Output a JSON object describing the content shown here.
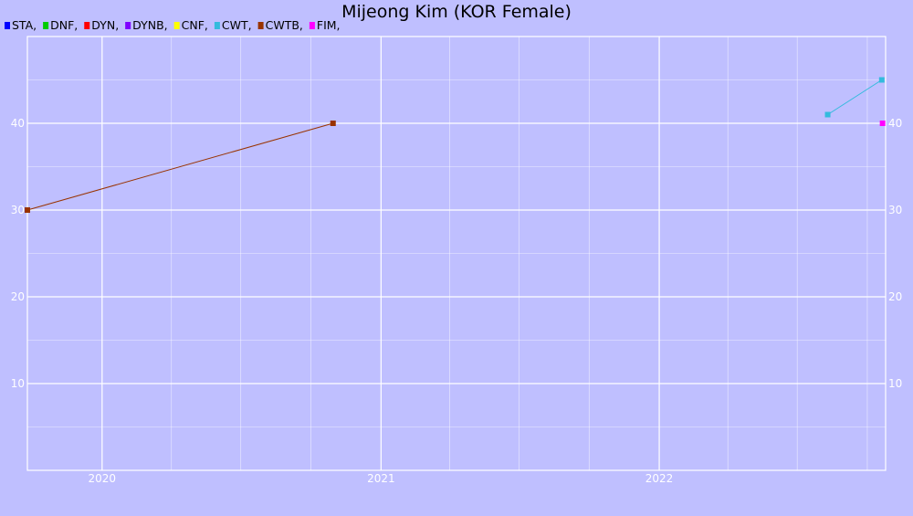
{
  "chart_data": {
    "type": "line",
    "title": "Mijeong Kim (KOR Female)",
    "legend": [
      {
        "label": "STA,",
        "color": "#0000ff"
      },
      {
        "label": "DNF,",
        "color": "#00cc00"
      },
      {
        "label": "DYN,",
        "color": "#ff0000"
      },
      {
        "label": "DYNB,",
        "color": "#7f00ff"
      },
      {
        "label": "CNF,",
        "color": "#ffff00"
      },
      {
        "label": "CWT,",
        "color": "#33bbdd"
      },
      {
        "label": "CWTB,",
        "color": "#993300"
      },
      {
        "label": "FIM,",
        "color": "#ff00ff"
      }
    ],
    "legend_placement": "top-left",
    "x_axis": {
      "type": "date",
      "range": [
        "2019-09-25",
        "2022-10-25"
      ],
      "tick_labels": [
        "2020",
        "2021",
        "2022"
      ],
      "tick_dates": [
        "2020-01-01",
        "2021-01-01",
        "2022-01-01"
      ],
      "minor_grid_dates": [
        "2020-04-01",
        "2020-07-01",
        "2020-10-01",
        "2021-04-01",
        "2021-07-01",
        "2021-10-01",
        "2022-04-01",
        "2022-07-01",
        "2022-10-01"
      ]
    },
    "y_axis": {
      "range": [
        0,
        50
      ],
      "tick_labels": [
        "10",
        "20",
        "30",
        "40"
      ],
      "ticks": [
        10,
        20,
        30,
        40
      ],
      "minor_ticks": [
        5,
        15,
        25,
        35,
        45
      ]
    },
    "grid": true,
    "series": [
      {
        "name": "CWTB",
        "color": "#993300",
        "points": [
          {
            "x": "2019-09-25",
            "y": 30
          },
          {
            "x": "2020-10-30",
            "y": 40
          }
        ]
      },
      {
        "name": "CWT",
        "color": "#33bbdd",
        "points": [
          {
            "x": "2022-08-10",
            "y": 41
          },
          {
            "x": "2022-10-20",
            "y": 45
          }
        ]
      },
      {
        "name": "FIM",
        "color": "#ff00ff",
        "points": [
          {
            "x": "2022-10-21",
            "y": 40
          }
        ]
      }
    ]
  }
}
